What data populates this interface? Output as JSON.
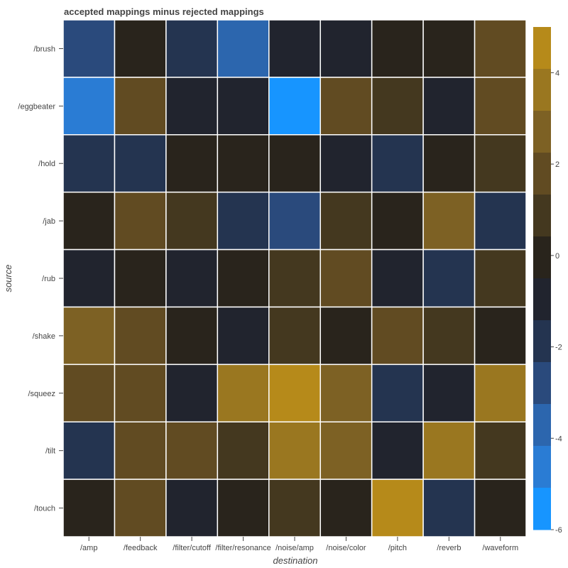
{
  "chart_data": {
    "type": "heatmap",
    "title": "accepted mappings minus rejected mappings",
    "xlabel": "destination",
    "ylabel": "source",
    "x_categories": [
      "/amp",
      "/feedback",
      "/filter/cutoff",
      "/filter/resonance",
      "/noise/amp",
      "/noise/color",
      "/pitch",
      "/reverb",
      "/waveform"
    ],
    "y_categories": [
      "/brush",
      "/eggbeater",
      "/hold",
      "/jab",
      "/rub",
      "/shake",
      "/squeez",
      "/tilt",
      "/touch"
    ],
    "values": [
      [
        -3,
        0,
        -2,
        -4,
        -1,
        -1,
        0,
        0,
        2
      ],
      [
        -5,
        2,
        -1,
        -1,
        -6,
        2,
        1,
        -1,
        2
      ],
      [
        -2,
        -2,
        0,
        0,
        0,
        -1,
        -2,
        0,
        1
      ],
      [
        0,
        2,
        1,
        -2,
        -3,
        1,
        0,
        3,
        -2
      ],
      [
        -1,
        0,
        -1,
        0,
        1,
        2,
        -1,
        -2,
        1
      ],
      [
        3,
        2,
        0,
        -1,
        1,
        0,
        2,
        1,
        0
      ],
      [
        2,
        2,
        -1,
        4,
        5,
        3,
        -2,
        -1,
        4
      ],
      [
        -2,
        2,
        2,
        1,
        4,
        3,
        -1,
        4,
        1
      ],
      [
        0,
        2,
        -1,
        0,
        1,
        0,
        5,
        -2,
        0
      ]
    ],
    "colorbar": {
      "range": [
        -6,
        5
      ],
      "ticks": [
        4,
        2,
        0,
        -2,
        -4,
        -6
      ],
      "tick_labels": [
        "4",
        "2",
        "0",
        "-2",
        "-4",
        "-6"
      ],
      "colors": [
        "#b68a1a",
        "#9a7720",
        "#7d6124",
        "#614b22",
        "#44381f",
        "#29241c",
        "#21242e",
        "#243450",
        "#2a4a7c",
        "#2c66ae",
        "#2a7cd4",
        "#1795ff"
      ]
    },
    "cell_border_color": "#ffffff",
    "grid": false
  }
}
